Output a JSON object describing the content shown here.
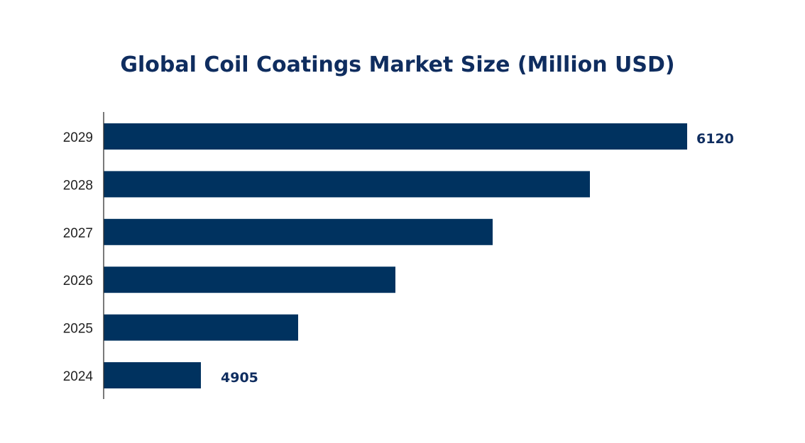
{
  "chart_data": {
    "type": "bar",
    "orientation": "horizontal",
    "title": "Global Coil Coatings Market Size (Million USD)",
    "categories": [
      "2024",
      "2025",
      "2026",
      "2027",
      "2028",
      "2029"
    ],
    "values": [
      4905,
      5148,
      5391,
      5634,
      5877,
      6120
    ],
    "data_labels": {
      "2024": "4905",
      "2029": "6120"
    },
    "xlabel": "",
    "ylabel": "",
    "grid": false,
    "bar_color": "#00325f",
    "label_color": "#0f2d5f"
  }
}
